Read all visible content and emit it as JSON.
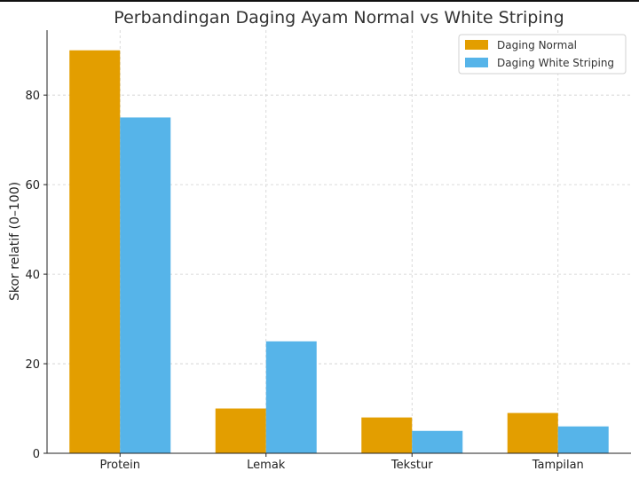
{
  "chart_data": {
    "type": "bar",
    "title": "Perbandingan Daging Ayam Normal vs White Striping",
    "xlabel": "",
    "ylabel": "Skor relatif (0–100)",
    "categories": [
      "Protein",
      "Lemak",
      "Tekstur",
      "Tampilan"
    ],
    "series": [
      {
        "name": "Daging Normal",
        "values": [
          90,
          10,
          8,
          9
        ],
        "color": "#E39E00"
      },
      {
        "name": "Daging White Striping",
        "values": [
          75,
          25,
          5,
          6
        ],
        "color": "#56B4E9"
      }
    ],
    "ylim": [
      0,
      94.5
    ],
    "yticks": [
      0,
      20,
      40,
      60,
      80
    ],
    "grid": true,
    "legend": "top-right"
  }
}
